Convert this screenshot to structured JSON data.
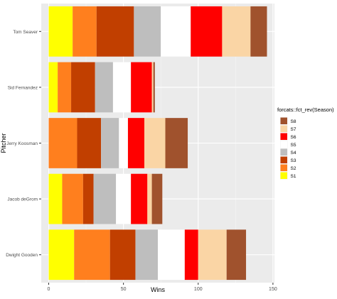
{
  "chart_data": {
    "type": "bar",
    "orientation": "horizontal",
    "stacked": true,
    "xlabel": "Wins",
    "ylabel": "Pitcher",
    "xlim": [
      -5,
      151
    ],
    "xticks": [
      0,
      50,
      100,
      150
    ],
    "grid": true,
    "legend_position": "right",
    "legend_title": "forcats::fct_rev(Season)",
    "legend_order": [
      "S8",
      "S7",
      "S6",
      "S5",
      "S4",
      "S3",
      "S2",
      "S1"
    ],
    "categories": [
      "Tom Seaver",
      "Sid Fernandez",
      "Jerry Koosman",
      "Jacob deGrom",
      "Dwight Gooden"
    ],
    "series": [
      {
        "name": "S1",
        "color": "#FFFF00",
        "values": [
          16,
          6,
          0,
          9,
          17
        ]
      },
      {
        "name": "S2",
        "color": "#FF7F1E",
        "values": [
          16,
          9,
          19,
          14,
          24
        ]
      },
      {
        "name": "S3",
        "color": "#C13F00",
        "values": [
          25,
          16,
          16,
          7,
          17
        ]
      },
      {
        "name": "S4",
        "color": "#BEBEBE",
        "values": [
          18,
          12,
          12,
          15,
          15
        ]
      },
      {
        "name": "S5",
        "color": "#FFFFFF",
        "values": [
          20,
          12,
          6,
          10,
          18
        ]
      },
      {
        "name": "S6",
        "color": "#FF0000",
        "values": [
          21,
          14,
          11,
          11,
          9
        ]
      },
      {
        "name": "S7",
        "color": "#FAD5A5",
        "values": [
          19,
          1,
          14,
          3,
          19
        ]
      },
      {
        "name": "S8",
        "color": "#A0522D",
        "values": [
          11,
          1,
          15,
          7,
          13
        ]
      }
    ]
  }
}
